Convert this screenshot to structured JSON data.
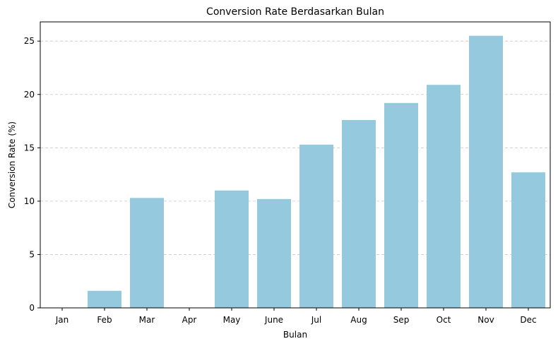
{
  "chart_data": {
    "type": "bar",
    "title": "Conversion Rate Berdasarkan Bulan",
    "xlabel": "Bulan",
    "ylabel": "Conversion Rate (%)",
    "categories": [
      "Jan",
      "Feb",
      "Mar",
      "Apr",
      "May",
      "June",
      "Jul",
      "Aug",
      "Sep",
      "Oct",
      "Nov",
      "Dec"
    ],
    "values": [
      0,
      1.6,
      10.3,
      0,
      11.0,
      10.2,
      15.3,
      17.6,
      19.2,
      20.9,
      25.5,
      12.7
    ],
    "ylim": [
      0,
      26.8
    ],
    "yticks": [
      "0",
      "5",
      "10",
      "15",
      "20",
      "25"
    ],
    "grid": "y, dashed",
    "bar_color": "#95c9dd"
  }
}
